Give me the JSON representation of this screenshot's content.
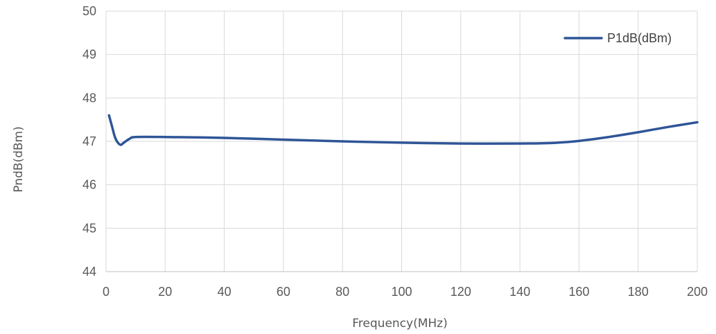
{
  "chart_data": {
    "type": "line",
    "title": "",
    "xlabel": "Frequency(MHz)",
    "ylabel": "PndB(dBm)",
    "xlim": [
      0,
      200
    ],
    "ylim": [
      44,
      50
    ],
    "x_ticks": [
      "0",
      "20",
      "40",
      "60",
      "80",
      "100",
      "120",
      "140",
      "160",
      "180",
      "200"
    ],
    "y_ticks": [
      "44",
      "45",
      "46",
      "47",
      "48",
      "49",
      "50"
    ],
    "grid": true,
    "legend_position": "top-right",
    "series": [
      {
        "name": "P1dB(dBm)",
        "color": "#2F5597",
        "x": [
          1,
          2,
          3,
          4,
          5,
          6,
          8,
          10,
          20,
          40,
          60,
          80,
          100,
          120,
          140,
          150,
          155,
          160,
          170,
          180,
          190,
          200
        ],
        "y": [
          47.6,
          47.35,
          47.1,
          46.97,
          46.92,
          46.97,
          47.06,
          47.1,
          47.1,
          47.08,
          47.04,
          47.0,
          46.97,
          46.95,
          46.95,
          46.96,
          46.98,
          47.01,
          47.1,
          47.21,
          47.33,
          47.44
        ]
      }
    ]
  }
}
